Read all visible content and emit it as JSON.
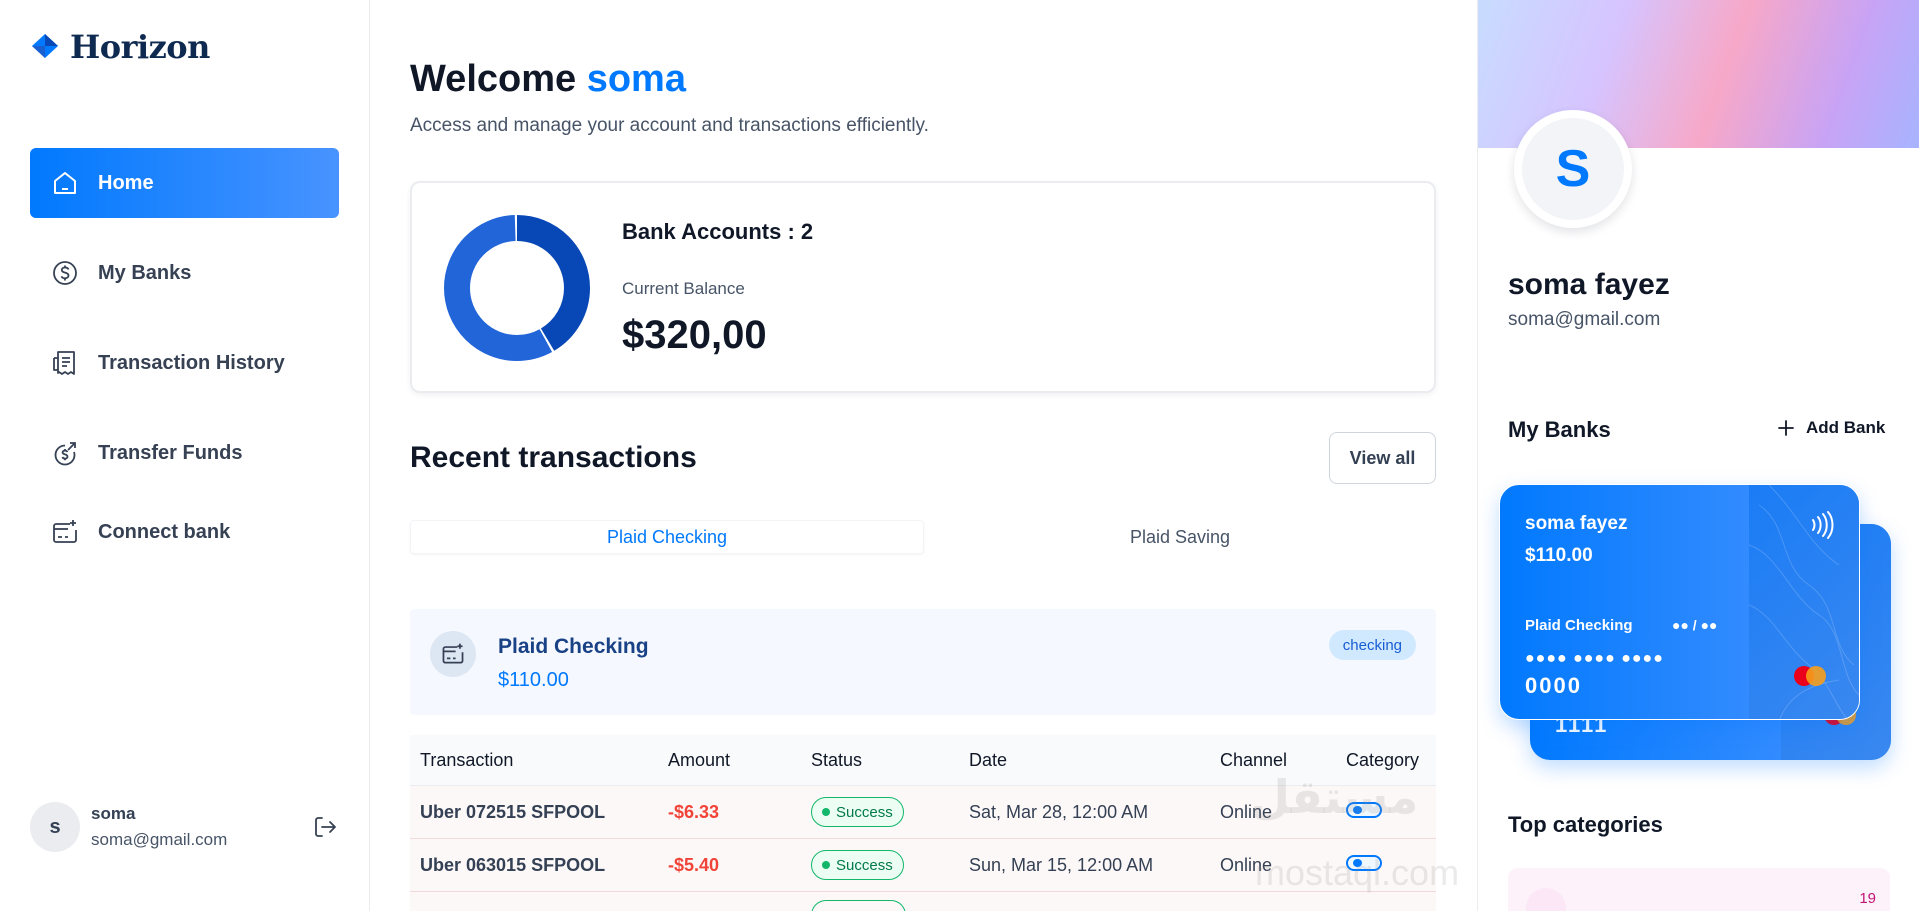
{
  "app": {
    "name": "Horizon"
  },
  "sidebar": {
    "items": [
      {
        "label": "Home",
        "icon": "home-icon",
        "active": true
      },
      {
        "label": "My Banks",
        "icon": "dollar-circle-icon",
        "active": false
      },
      {
        "label": "Transaction History",
        "icon": "receipt-icon",
        "active": false
      },
      {
        "label": "Transfer Funds",
        "icon": "money-send-icon",
        "active": false
      },
      {
        "label": "Connect bank",
        "icon": "card-add-icon",
        "active": false
      }
    ],
    "user": {
      "initial": "s",
      "name": "soma",
      "email": "soma@gmail.com"
    }
  },
  "header": {
    "greeting": "Welcome",
    "user_name": "soma",
    "subtitle": "Access and manage your account and transactions efficiently."
  },
  "summary": {
    "bank_accounts_label": "Bank Accounts : 2",
    "balance_label": "Current Balance",
    "balance_value": "$320,00",
    "donut_colors": [
      "#0747b6",
      "#2265d8",
      "#2f91fa"
    ]
  },
  "recent": {
    "title": "Recent transactions",
    "view_all": "View all",
    "tabs": [
      {
        "label": "Plaid Checking",
        "active": true
      },
      {
        "label": "Plaid Saving",
        "active": false
      }
    ],
    "bank": {
      "name": "Plaid Checking",
      "amount": "$110.00",
      "type": "checking"
    },
    "columns": [
      "Transaction",
      "Amount",
      "Status",
      "Date",
      "Channel",
      "Category"
    ],
    "rows": [
      {
        "name": "Uber 072515 SFPOOL",
        "amount": "-$6.33",
        "status": "Success",
        "date": "Sat, Mar 28, 12:00 AM",
        "channel": "Online"
      },
      {
        "name": "Uber 063015 SFPOOL",
        "amount": "-$5.40",
        "status": "Success",
        "date": "Sun, Mar 15, 12:00 AM",
        "channel": "Online"
      }
    ]
  },
  "watermark": {
    "arabic": "مستقل",
    "latin": "mostaql.com"
  },
  "profile": {
    "initial": "S",
    "name": "soma fayez",
    "email": "soma@gmail.com"
  },
  "banks": {
    "title": "My Banks",
    "add_label": "Add Bank",
    "cards": [
      {
        "holder": "soma fayez",
        "balance": "$110.00",
        "bank": "Plaid Checking",
        "expiry": "●● / ●●",
        "dots": "●●●● ●●●● ●●●●",
        "mask": "0000"
      },
      {
        "mask": "1111"
      }
    ]
  },
  "top_categories": {
    "title": "Top categories",
    "first_count": "19"
  },
  "colors": {
    "accent": "#0179fe",
    "success": "#12b76a",
    "debit": "#f04438"
  }
}
